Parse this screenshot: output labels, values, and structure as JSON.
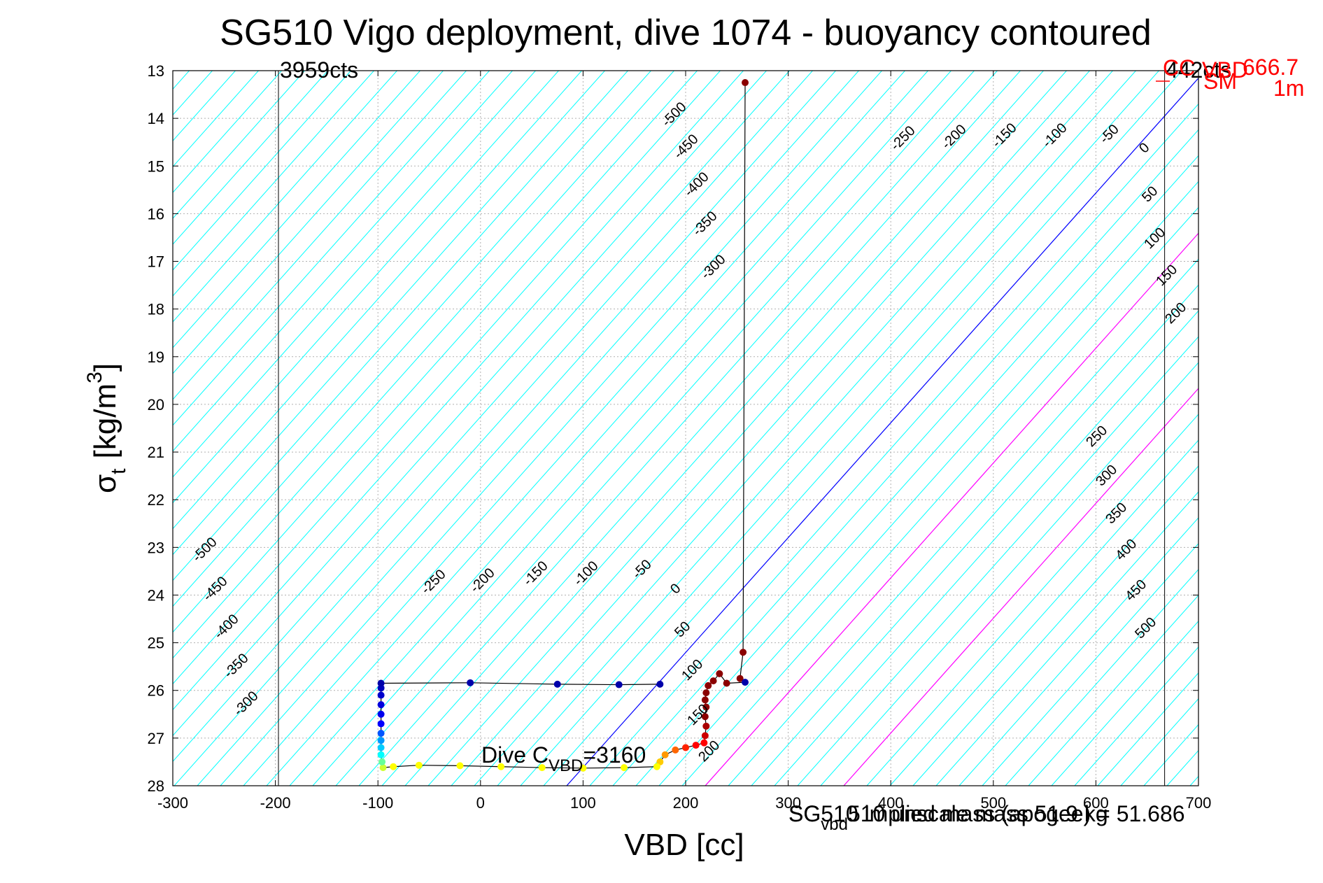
{
  "chart_data": {
    "type": "scatter",
    "title": "SG510 Vigo deployment, dive 1074 - buoyancy contoured",
    "xlabel": "VBD [cc]",
    "ylabel_main": "σ",
    "ylabel_sub": "t",
    "ylabel_unit": "[kg/m",
    "ylabel_sup": "3",
    "ylabel_close": "]",
    "xlim": [
      -300,
      700
    ],
    "ylim": [
      13,
      28
    ],
    "y_reversed": true,
    "grid": true,
    "xticks": [
      -300,
      -200,
      -100,
      0,
      100,
      200,
      300,
      400,
      500,
      600,
      700
    ],
    "yticks": [
      13,
      14,
      15,
      16,
      17,
      18,
      19,
      20,
      21,
      22,
      23,
      24,
      25,
      26,
      27,
      28
    ],
    "contour_colors": {
      "neutral": "#00ffff",
      "zero": "#0000ff",
      "positive": "#ff00ff"
    },
    "contour_labels_upper": [
      "-500",
      "-450",
      "-400",
      "-350",
      "-300",
      "-250",
      "-200",
      "-150",
      "-100",
      "-50",
      "0",
      "50",
      "100",
      "150",
      "200",
      "250",
      "300",
      "350",
      "400",
      "450",
      "500"
    ],
    "contour_labels_lower": [
      "-500",
      "-450",
      "-400",
      "-350",
      "-300",
      "-250",
      "-200",
      "-150",
      "-100",
      "-50",
      "0",
      "50",
      "100",
      "150",
      "200"
    ],
    "vertical_lines": [
      {
        "x": -197,
        "label": "3959cts"
      },
      {
        "x": 667,
        "label": "442cts"
      }
    ],
    "annotations": {
      "dive_cvbd_prefix": "Dive C",
      "dive_cvbd_sub": "VBD",
      "dive_cvbd_value": "=3160",
      "footer_overlap_1": "SG510 implied mass (apogee) = 51.686",
      "footer_overlap_2_prefix": "SG",
      "footer_overlap_2_sub": "vbd",
      "footer_overlap_2_rest": "510 unscale mass 51.9 kg",
      "red_1": "CC",
      "red_2": "VBD",
      "red_3": "666.7",
      "red_4": "SM",
      "red_5": "1m"
    },
    "series": [
      {
        "points": [
          {
            "x": 258,
            "y": 13.25,
            "c": "#8b0000"
          },
          {
            "x": 256,
            "y": 25.2,
            "c": "#8b0000"
          },
          {
            "x": 253,
            "y": 25.75,
            "c": "#8b0000"
          },
          {
            "x": 258,
            "y": 25.83,
            "c": "#0000aa"
          },
          {
            "x": 240,
            "y": 25.85,
            "c": "#8b0000"
          },
          {
            "x": 233,
            "y": 25.65,
            "c": "#8b0000"
          },
          {
            "x": 227,
            "y": 25.8,
            "c": "#8b0000"
          },
          {
            "x": 222,
            "y": 25.9,
            "c": "#8b0000"
          },
          {
            "x": 220,
            "y": 26.05,
            "c": "#8b0000"
          },
          {
            "x": 219,
            "y": 26.2,
            "c": "#8b0000"
          },
          {
            "x": 220,
            "y": 26.35,
            "c": "#8b0000"
          },
          {
            "x": 219,
            "y": 26.55,
            "c": "#8b0000"
          },
          {
            "x": 220,
            "y": 26.75,
            "c": "#aa0000"
          },
          {
            "x": 219,
            "y": 26.95,
            "c": "#cc0000"
          },
          {
            "x": 218,
            "y": 27.1,
            "c": "#ff0000"
          },
          {
            "x": 210,
            "y": 27.15,
            "c": "#ff0000"
          },
          {
            "x": 200,
            "y": 27.2,
            "c": "#ff2200"
          },
          {
            "x": 190,
            "y": 27.25,
            "c": "#ff6600"
          },
          {
            "x": 180,
            "y": 27.35,
            "c": "#ff9900"
          },
          {
            "x": 175,
            "y": 27.5,
            "c": "#ffcc00"
          },
          {
            "x": 172,
            "y": 27.6,
            "c": "#ffff00"
          },
          {
            "x": 140,
            "y": 27.62,
            "c": "#ffff00"
          },
          {
            "x": 100,
            "y": 27.63,
            "c": "#ffff00"
          },
          {
            "x": 60,
            "y": 27.62,
            "c": "#ffff00"
          },
          {
            "x": 20,
            "y": 27.6,
            "c": "#ffff00"
          },
          {
            "x": -20,
            "y": 27.58,
            "c": "#ffff00"
          },
          {
            "x": -60,
            "y": 27.57,
            "c": "#ffff00"
          },
          {
            "x": -85,
            "y": 27.6,
            "c": "#ffff00"
          },
          {
            "x": -95,
            "y": 27.62,
            "c": "#ccff33"
          },
          {
            "x": -96,
            "y": 27.5,
            "c": "#66ff99"
          },
          {
            "x": -97,
            "y": 27.35,
            "c": "#00ffff"
          },
          {
            "x": -97,
            "y": 27.2,
            "c": "#00ccff"
          },
          {
            "x": -97,
            "y": 27.05,
            "c": "#0099ff"
          },
          {
            "x": -97,
            "y": 26.9,
            "c": "#0055ff"
          },
          {
            "x": -97,
            "y": 26.7,
            "c": "#0000ff"
          },
          {
            "x": -97,
            "y": 26.5,
            "c": "#0000ee"
          },
          {
            "x": -97,
            "y": 26.3,
            "c": "#0000dd"
          },
          {
            "x": -97,
            "y": 26.1,
            "c": "#0000cc"
          },
          {
            "x": -97,
            "y": 25.95,
            "c": "#0000bb"
          },
          {
            "x": -97,
            "y": 25.85,
            "c": "#0000aa"
          },
          {
            "x": -10,
            "y": 25.84,
            "c": "#0000aa"
          },
          {
            "x": 75,
            "y": 25.87,
            "c": "#0000aa"
          },
          {
            "x": 135,
            "y": 25.88,
            "c": "#0000aa"
          },
          {
            "x": 175,
            "y": 25.87,
            "c": "#0000aa"
          }
        ]
      }
    ]
  }
}
